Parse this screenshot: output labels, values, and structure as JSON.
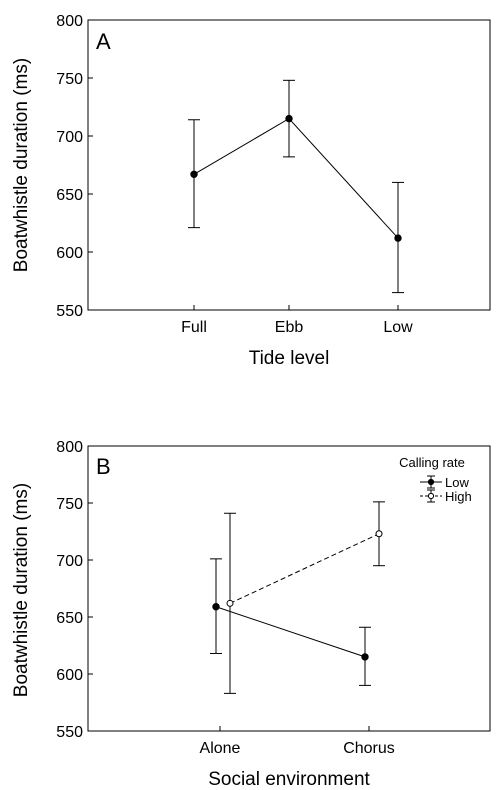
{
  "chart_data": [
    {
      "type": "line",
      "panel_label": "A",
      "categories": [
        "Full",
        "Ebb",
        "Low"
      ],
      "series": [
        {
          "values": [
            667,
            715,
            612
          ],
          "error_low": [
            621,
            682,
            565
          ],
          "error_high": [
            714,
            748,
            660
          ],
          "marker": "filled",
          "linestyle": "solid"
        }
      ],
      "xlabel": "Tide level",
      "ylabel": "Boatwhistle duration (ms)",
      "ylim": [
        550,
        800
      ],
      "yticks": [
        550,
        600,
        650,
        700,
        750,
        800
      ],
      "grid": false
    },
    {
      "type": "line",
      "panel_label": "B",
      "categories": [
        "Alone",
        "Chorus"
      ],
      "series": [
        {
          "name": "Low",
          "values": [
            659,
            615
          ],
          "error_low": [
            618,
            590
          ],
          "error_high": [
            701,
            641
          ],
          "marker": "filled",
          "linestyle": "solid"
        },
        {
          "name": "High",
          "values": [
            662,
            723
          ],
          "error_low": [
            583,
            695
          ],
          "error_high": [
            741,
            751
          ],
          "marker": "open",
          "linestyle": "dashed"
        }
      ],
      "legend_title": "Calling rate",
      "legend_position": "top-right",
      "xlabel": "Social environment",
      "ylabel": "Boatwhistle duration (ms)",
      "ylim": [
        550,
        800
      ],
      "yticks": [
        550,
        600,
        650,
        700,
        750,
        800
      ],
      "grid": false
    }
  ]
}
